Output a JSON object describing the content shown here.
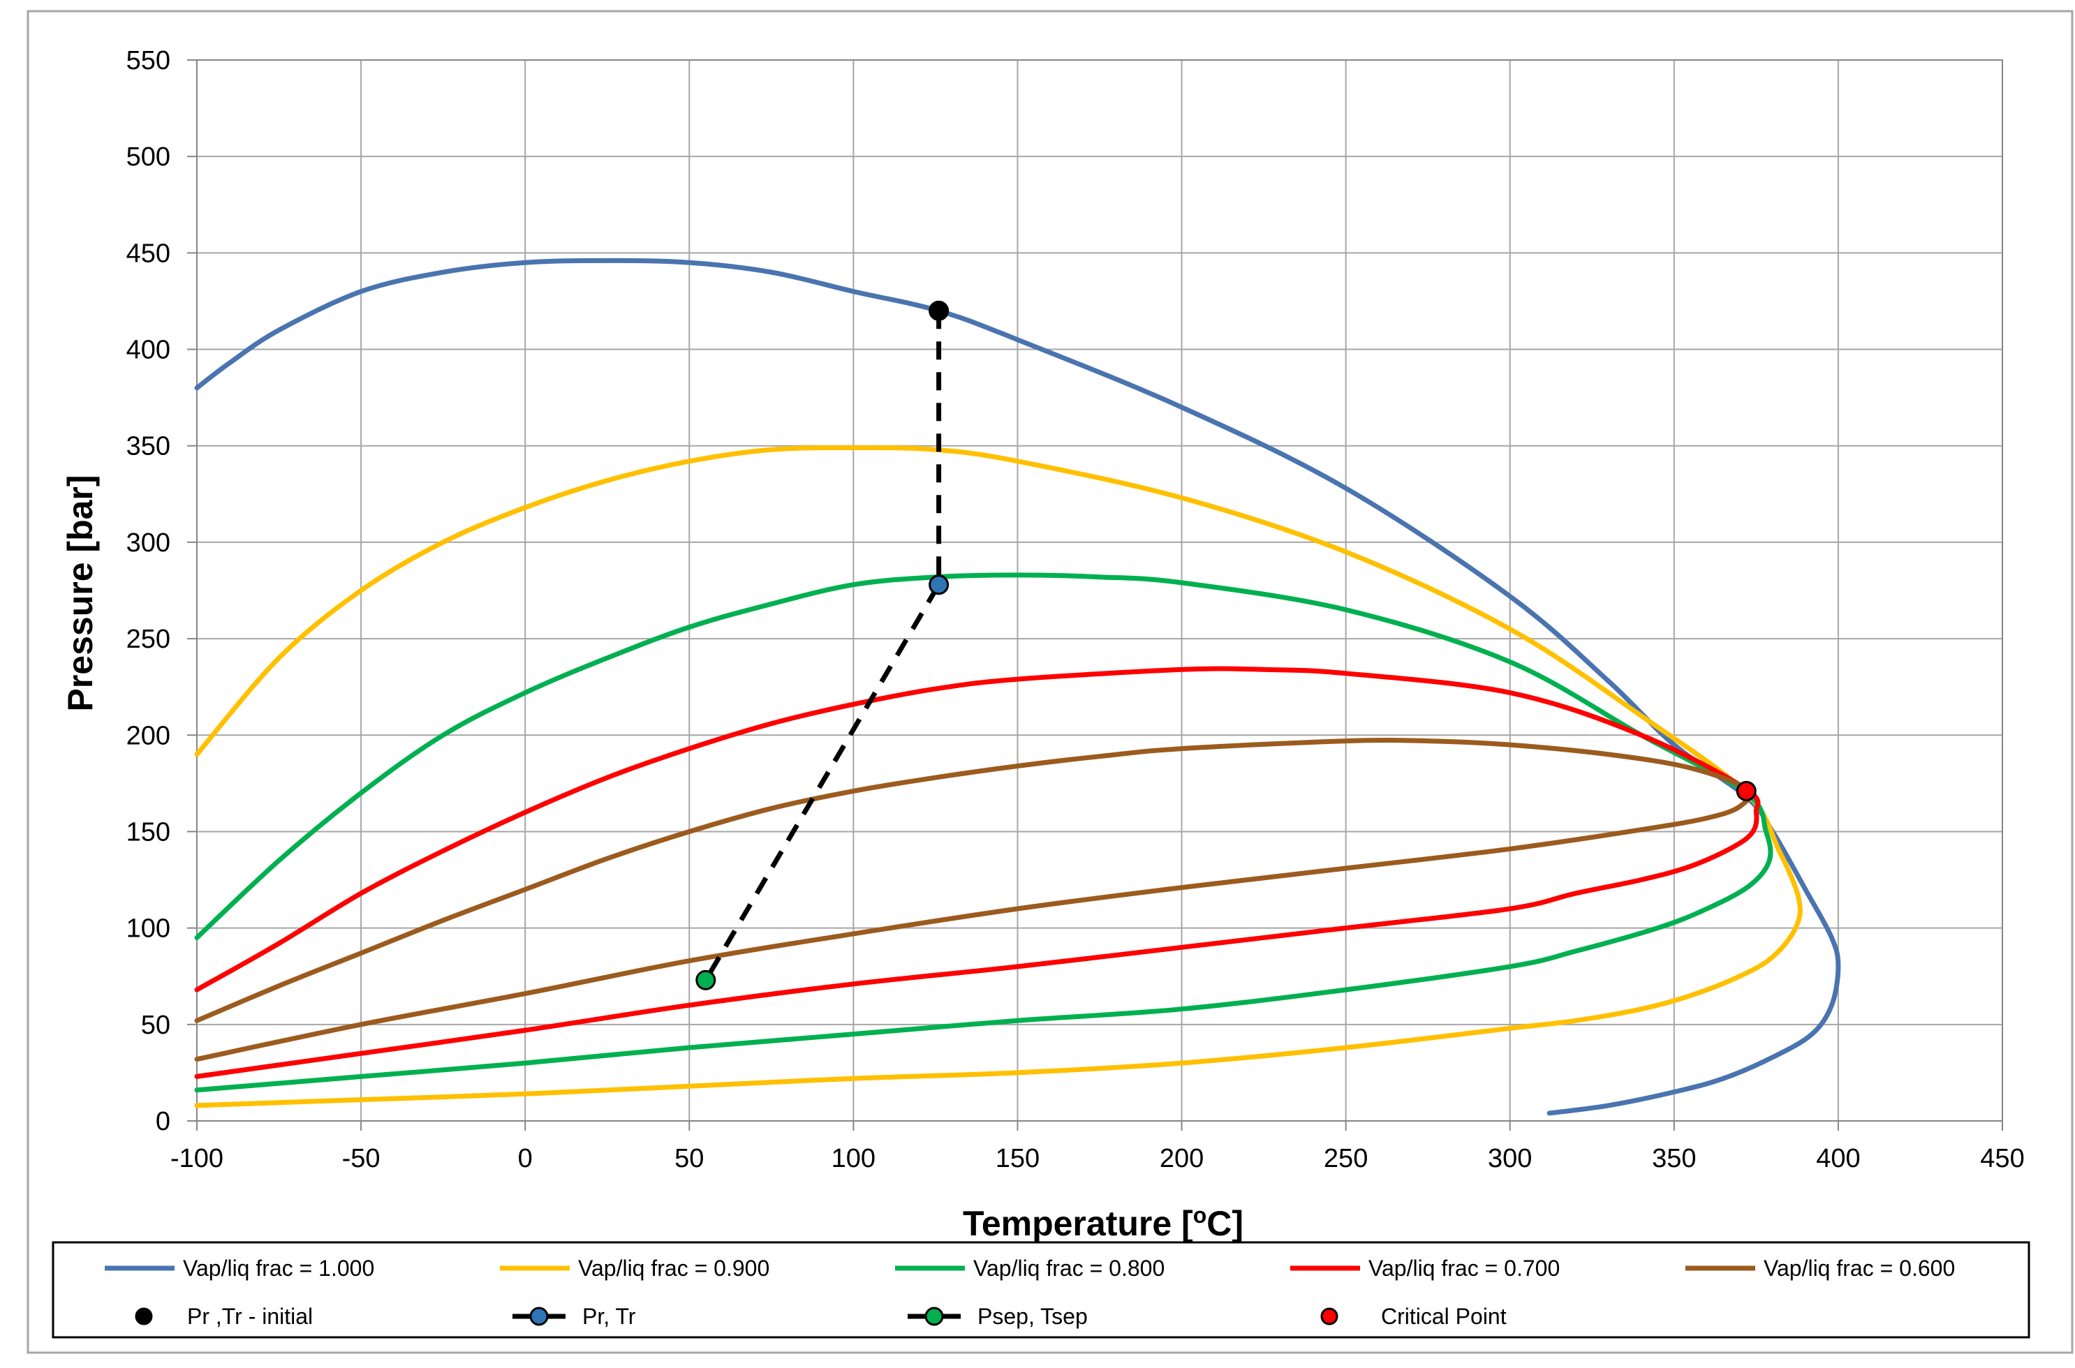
{
  "chart_data": {
    "type": "line",
    "title": "",
    "xlabel": "Temperature [oC]",
    "ylabel": "Pressure [bar]",
    "xlim": [
      -100,
      450
    ],
    "ylim": [
      0,
      550
    ],
    "xticks": [
      -100,
      -50,
      0,
      50,
      100,
      150,
      200,
      250,
      300,
      350,
      400,
      450
    ],
    "yticks": [
      0,
      50,
      100,
      150,
      200,
      250,
      300,
      350,
      400,
      450,
      500,
      550
    ],
    "grid": true,
    "legend_position": "bottom",
    "series": [
      {
        "name": "Vap/liq frac = 1.000",
        "color": "#4a74b0",
        "points": [
          [
            -100,
            380
          ],
          [
            -90,
            393
          ],
          [
            -75,
            410
          ],
          [
            -50,
            430
          ],
          [
            -25,
            440
          ],
          [
            0,
            445
          ],
          [
            25,
            446
          ],
          [
            50,
            445
          ],
          [
            75,
            440
          ],
          [
            100,
            430
          ],
          [
            126,
            420
          ],
          [
            150,
            405
          ],
          [
            200,
            370
          ],
          [
            250,
            328
          ],
          [
            300,
            272
          ],
          [
            330,
            228
          ],
          [
            350,
            195
          ],
          [
            372,
            168
          ],
          [
            380,
            150
          ],
          [
            390,
            120
          ],
          [
            398,
            95
          ],
          [
            400,
            80
          ],
          [
            398,
            60
          ],
          [
            392,
            45
          ],
          [
            380,
            33
          ],
          [
            365,
            22
          ],
          [
            350,
            15
          ],
          [
            330,
            8
          ],
          [
            312,
            4
          ]
        ]
      },
      {
        "name": "Vap/liq frac = 0.900",
        "color": "#ffc000",
        "points": [
          [
            -100,
            190
          ],
          [
            -75,
            240
          ],
          [
            -50,
            275
          ],
          [
            -25,
            300
          ],
          [
            0,
            318
          ],
          [
            25,
            332
          ],
          [
            50,
            342
          ],
          [
            75,
            348
          ],
          [
            100,
            349
          ],
          [
            125,
            348
          ],
          [
            150,
            342
          ],
          [
            200,
            323
          ],
          [
            250,
            295
          ],
          [
            300,
            255
          ],
          [
            340,
            210
          ],
          [
            372,
            170
          ],
          [
            382,
            140
          ],
          [
            388,
            115
          ],
          [
            387,
            100
          ],
          [
            380,
            85
          ],
          [
            370,
            75
          ],
          [
            355,
            65
          ],
          [
            340,
            58
          ],
          [
            320,
            52
          ],
          [
            300,
            48
          ],
          [
            250,
            38
          ],
          [
            200,
            30
          ],
          [
            150,
            25
          ],
          [
            100,
            22
          ],
          [
            50,
            18
          ],
          [
            0,
            14
          ],
          [
            -50,
            11
          ],
          [
            -100,
            8
          ]
        ]
      },
      {
        "name": "Vap/liq frac = 0.800",
        "color": "#00b050",
        "points": [
          [
            -100,
            95
          ],
          [
            -75,
            135
          ],
          [
            -50,
            170
          ],
          [
            -25,
            200
          ],
          [
            0,
            222
          ],
          [
            25,
            240
          ],
          [
            50,
            256
          ],
          [
            75,
            268
          ],
          [
            100,
            278
          ],
          [
            125,
            282
          ],
          [
            150,
            283
          ],
          [
            175,
            282
          ],
          [
            200,
            279
          ],
          [
            250,
            265
          ],
          [
            300,
            238
          ],
          [
            340,
            200
          ],
          [
            372,
            170
          ],
          [
            378,
            150
          ],
          [
            379,
            135
          ],
          [
            373,
            122
          ],
          [
            360,
            110
          ],
          [
            345,
            100
          ],
          [
            320,
            88
          ],
          [
            300,
            80
          ],
          [
            250,
            68
          ],
          [
            200,
            58
          ],
          [
            150,
            52
          ],
          [
            100,
            45
          ],
          [
            50,
            38
          ],
          [
            0,
            30
          ],
          [
            -50,
            23
          ],
          [
            -100,
            16
          ]
        ]
      },
      {
        "name": "Vap/liq frac = 0.700",
        "color": "#ff0000",
        "points": [
          [
            -100,
            68
          ],
          [
            -75,
            92
          ],
          [
            -50,
            118
          ],
          [
            -25,
            140
          ],
          [
            0,
            160
          ],
          [
            25,
            178
          ],
          [
            50,
            193
          ],
          [
            75,
            206
          ],
          [
            100,
            216
          ],
          [
            125,
            224
          ],
          [
            150,
            229
          ],
          [
            200,
            234
          ],
          [
            225,
            234
          ],
          [
            250,
            232
          ],
          [
            300,
            222
          ],
          [
            340,
            200
          ],
          [
            372,
            172
          ],
          [
            375,
            160
          ],
          [
            374,
            150
          ],
          [
            368,
            142
          ],
          [
            355,
            132
          ],
          [
            340,
            125
          ],
          [
            320,
            118
          ],
          [
            300,
            110
          ],
          [
            250,
            100
          ],
          [
            200,
            90
          ],
          [
            150,
            80
          ],
          [
            100,
            71
          ],
          [
            50,
            60
          ],
          [
            0,
            47
          ],
          [
            -50,
            35
          ],
          [
            -100,
            23
          ]
        ]
      },
      {
        "name": "Vap/liq frac = 0.600",
        "color": "#9c5b1e",
        "points": [
          [
            -100,
            52
          ],
          [
            -75,
            70
          ],
          [
            -50,
            87
          ],
          [
            -25,
            104
          ],
          [
            0,
            120
          ],
          [
            25,
            136
          ],
          [
            50,
            150
          ],
          [
            75,
            162
          ],
          [
            100,
            171
          ],
          [
            125,
            178
          ],
          [
            150,
            184
          ],
          [
            175,
            189
          ],
          [
            200,
            193
          ],
          [
            250,
            197
          ],
          [
            275,
            197
          ],
          [
            300,
            195
          ],
          [
            330,
            190
          ],
          [
            355,
            183
          ],
          [
            372,
            172
          ],
          [
            370,
            163
          ],
          [
            360,
            157
          ],
          [
            340,
            151
          ],
          [
            300,
            141
          ],
          [
            250,
            131
          ],
          [
            200,
            121
          ],
          [
            150,
            110
          ],
          [
            100,
            97
          ],
          [
            50,
            83
          ],
          [
            0,
            66
          ],
          [
            -50,
            50
          ],
          [
            -100,
            32
          ]
        ]
      }
    ],
    "path_series": {
      "name": "Pr, Tr / Psep, Tsep",
      "color": "#000000",
      "style": "dashed",
      "points": [
        [
          126,
          420
        ],
        [
          126,
          278
        ],
        [
          55,
          73
        ]
      ]
    },
    "markers": [
      {
        "name": "Pr ,Tr - initial",
        "x": 126,
        "y": 420,
        "color": "#000000"
      },
      {
        "name": "Pr, Tr",
        "x": 126,
        "y": 278,
        "color": "#2e75b6"
      },
      {
        "name": "Psep, Tsep",
        "x": 55,
        "y": 73,
        "color": "#00b050"
      },
      {
        "name": "Critical Point",
        "x": 372,
        "y": 171,
        "color": "#ff0000"
      }
    ]
  },
  "labels": {
    "xlabel_main": "Temperature [",
    "xlabel_sup": "o",
    "xlabel_end": "C]",
    "ylabel": "Pressure [bar]"
  },
  "legend": {
    "items": [
      {
        "label": "Vap/liq frac = 1.000",
        "kind": "line",
        "color": "#4a74b0"
      },
      {
        "label": "Vap/liq frac = 0.900",
        "kind": "line",
        "color": "#ffc000"
      },
      {
        "label": "Vap/liq frac = 0.800",
        "kind": "line",
        "color": "#00b050"
      },
      {
        "label": "Vap/liq frac = 0.700",
        "kind": "line",
        "color": "#ff0000"
      },
      {
        "label": "Vap/liq frac = 0.600",
        "kind": "line",
        "color": "#9c5b1e"
      },
      {
        "label": "Pr ,Tr - initial",
        "kind": "marker",
        "color": "#000000"
      },
      {
        "label": "Pr, Tr",
        "kind": "line-marker",
        "color": "#2e75b6"
      },
      {
        "label": "Psep, Tsep",
        "kind": "line-marker",
        "color": "#00b050"
      },
      {
        "label": "Critical Point",
        "kind": "marker",
        "color": "#ff0000"
      }
    ]
  }
}
